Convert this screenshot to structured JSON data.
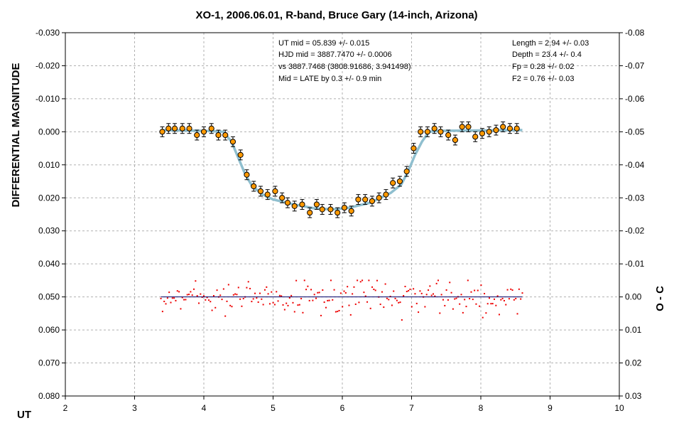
{
  "chart_data": {
    "type": "scatter",
    "title": "XO-1, 2006.06.01, R-band, Bruce Gary (14-inch, Arizona)",
    "xlabel": "UT",
    "ylabel": "DIFFERENTIAL MAGNITUDE",
    "y2label": "O - C",
    "xlim": [
      2,
      10
    ],
    "ylim": [
      -0.03,
      0.08
    ],
    "y_inverted": true,
    "y2lim": [
      -0.08,
      0.03
    ],
    "grid": true,
    "x_ticks": [
      "2",
      "3",
      "4",
      "5",
      "6",
      "7",
      "8",
      "9",
      "10"
    ],
    "y_ticks": [
      "-0.030",
      "-0.020",
      "-0.010",
      "0.000",
      "0.010",
      "0.020",
      "0.030",
      "0.040",
      "0.050",
      "0.060",
      "0.070",
      "0.080"
    ],
    "y2_ticks": [
      "-0.08",
      "-0.07",
      "-0.06",
      "-0.05",
      "-0.04",
      "-0.03",
      "-0.02",
      "-0.01",
      "0.00",
      "0.01",
      "0.02",
      "0.03"
    ],
    "annotations_left": [
      "UT mid = 05.839 +/- 0.015",
      "HJD mid = 3887.7470 +/- 0.0006",
      "vs 3887.7468  (3808.91686, 3.941498)",
      "Mid = LATE by 0.3 +/- 0.9 min"
    ],
    "annotations_right": [
      "Length = 2.94 +/- 0.03",
      "Depth = 23.4 +/- 0.4",
      "Fp = 0.28 +/- 0.02",
      "F2 = 0.76 +/- 0.03"
    ],
    "colors": {
      "data_points": "#ff9900",
      "model_curve": "#8fbfcf",
      "residual_points": "#ee0000",
      "residual_line": "#000066",
      "grid": "#b0b0b0"
    },
    "series": [
      {
        "kind": "binned_data",
        "x": [
          3.4,
          3.49,
          3.58,
          3.69,
          3.79,
          3.9,
          4.0,
          4.11,
          4.21,
          4.31,
          4.42,
          4.53,
          4.62,
          4.72,
          4.82,
          4.92,
          5.03,
          5.13,
          5.21,
          5.31,
          5.42,
          5.53,
          5.63,
          5.71,
          5.83,
          5.93,
          6.03,
          6.13,
          6.23,
          6.33,
          6.43,
          6.53,
          6.63,
          6.73,
          6.83,
          6.93,
          7.03,
          7.13,
          7.23,
          7.33,
          7.42,
          7.53,
          7.63,
          7.73,
          7.82,
          7.92,
          8.02,
          8.12,
          8.22,
          8.32,
          8.42,
          8.52
        ],
        "y": [
          0.0,
          -0.001,
          -0.001,
          -0.001,
          -0.001,
          0.001,
          0.0,
          -0.001,
          0.001,
          0.001,
          0.003,
          0.007,
          0.013,
          0.0165,
          0.018,
          0.019,
          0.018,
          0.02,
          0.0215,
          0.0225,
          0.022,
          0.0245,
          0.022,
          0.0235,
          0.0235,
          0.0245,
          0.023,
          0.024,
          0.0205,
          0.0205,
          0.021,
          0.02,
          0.019,
          0.0155,
          0.015,
          0.012,
          0.005,
          0.0,
          0.0,
          -0.001,
          0.0,
          0.001,
          0.0025,
          -0.0015,
          -0.0015,
          0.0015,
          0.0005,
          0.0,
          -0.0005,
          -0.0015,
          -0.001,
          -0.001
        ],
        "error": 0.0015
      },
      {
        "kind": "model",
        "x": [
          3.4,
          4.0,
          4.28,
          4.4,
          4.5,
          4.6,
          4.7,
          4.85,
          5.0,
          5.3,
          5.6,
          5.85,
          6.1,
          6.4,
          6.7,
          6.85,
          6.95,
          7.05,
          7.15,
          7.25,
          7.4,
          8.0,
          8.6
        ],
        "y": [
          -0.0005,
          -0.0003,
          0.0,
          0.003,
          0.008,
          0.013,
          0.0165,
          0.019,
          0.0205,
          0.022,
          0.0232,
          0.0235,
          0.023,
          0.0215,
          0.0185,
          0.016,
          0.012,
          0.007,
          0.003,
          0.0,
          -0.0003,
          -0.0004,
          -0.0005
        ]
      },
      {
        "kind": "residuals",
        "baseline": 0.0,
        "x_start": 3.38,
        "x_end": 8.6,
        "count": 220,
        "scatter_range": [
          -0.005,
          0.007
        ]
      }
    ]
  }
}
